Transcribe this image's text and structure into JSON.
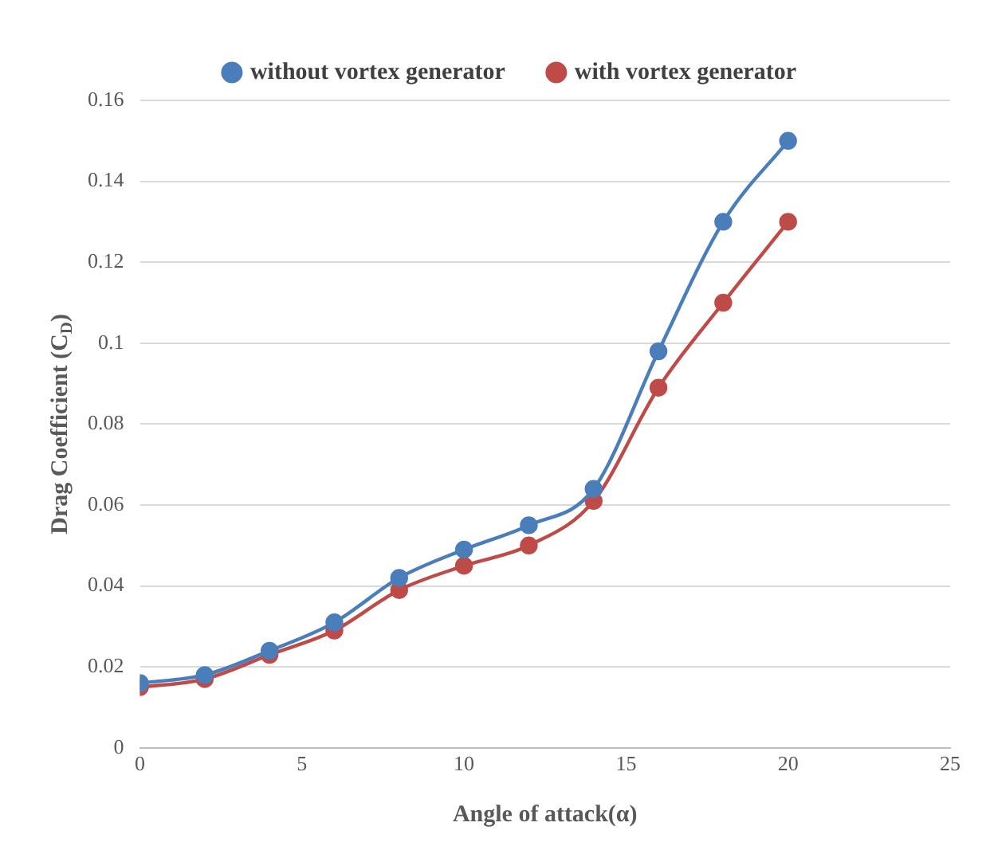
{
  "chart_data": {
    "type": "line",
    "xlabel": "Angle of attack(α)",
    "ylabel": "Drag Coefficient (C$_{D}$)",
    "x": [
      0,
      2,
      4,
      6,
      8,
      10,
      12,
      14,
      16,
      18,
      20
    ],
    "series": [
      {
        "name": "without vortex generator",
        "color": "#4a7ebb",
        "values": [
          0.016,
          0.018,
          0.024,
          0.031,
          0.042,
          0.049,
          0.055,
          0.064,
          0.098,
          0.13,
          0.15
        ]
      },
      {
        "name": "with vortex generator",
        "color": "#be4b48",
        "values": [
          0.015,
          0.017,
          0.023,
          0.029,
          0.039,
          0.045,
          0.05,
          0.061,
          0.089,
          0.11,
          0.13
        ]
      }
    ],
    "xlim": [
      0,
      25
    ],
    "xticks": [
      0,
      5,
      10,
      15,
      20,
      25
    ],
    "ylim": [
      0,
      0.16
    ],
    "yticks": [
      0,
      0.02,
      0.04,
      0.06,
      0.08,
      0.1,
      0.12,
      0.14,
      0.16
    ],
    "grid": "y",
    "legend": "top",
    "marker": "circle",
    "line_style": "solid"
  }
}
